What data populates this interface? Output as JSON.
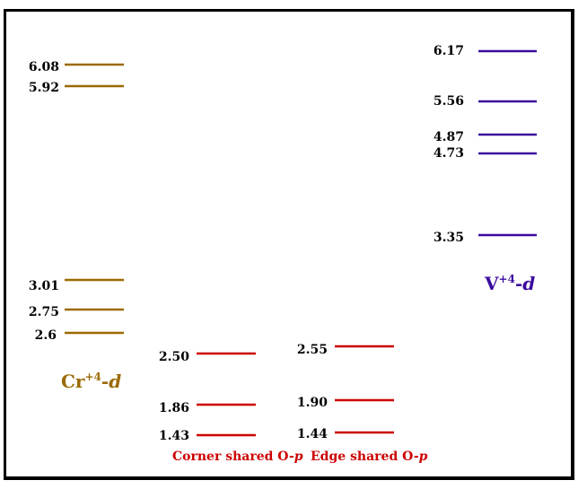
{
  "diagram": {
    "columns": [
      {
        "id": "cr",
        "label_main": "Cr",
        "label_sup": "+4",
        "label_suffix": "-",
        "label_italic": "d",
        "color": "#9B6A00",
        "levels": [
          "6.08",
          "5.92",
          "3.01",
          "2.75",
          "2.6"
        ]
      },
      {
        "id": "corner",
        "label_main": "Corner shared O-",
        "label_italic": "p",
        "color": "#CC0000",
        "levels": [
          "2.50",
          "1.86",
          "1.43"
        ]
      },
      {
        "id": "edge",
        "label_main": "Edge shared O-",
        "label_italic": "p",
        "color": "#CC0000",
        "levels": [
          "2.55",
          "1.90",
          "1.44"
        ]
      },
      {
        "id": "v",
        "label_main": "V",
        "label_sup": "+4",
        "label_suffix": "-",
        "label_italic": "d",
        "color": "#3A0A9E",
        "levels": [
          "6.17",
          "5.56",
          "4.87",
          "4.73",
          "3.35"
        ]
      }
    ]
  }
}
